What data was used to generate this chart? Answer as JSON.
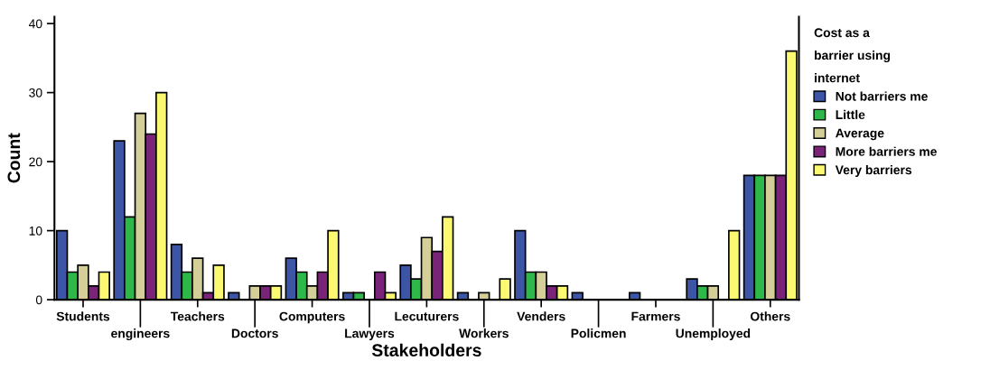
{
  "chart_data": {
    "type": "bar",
    "xlabel": "Stakeholders",
    "ylabel": "Count",
    "legend_title": "Cost as a\nbarrier using\ninternet",
    "categories": [
      "Students",
      "engineers",
      "Teachers",
      "Doctors",
      "Computers",
      "Lawyers",
      "Lecuturers",
      "Workers",
      "Venders",
      "Policmen",
      "Farmers",
      "Unemployed",
      "Others"
    ],
    "series": [
      {
        "name": "Not barriers me",
        "color": "#3c55a5",
        "values": [
          10,
          23,
          8,
          1,
          6,
          1,
          5,
          1,
          10,
          1,
          1,
          3,
          18
        ]
      },
      {
        "name": "Little",
        "color": "#2fb84a",
        "values": [
          4,
          12,
          4,
          null,
          4,
          1,
          3,
          null,
          4,
          null,
          null,
          2,
          18
        ]
      },
      {
        "name": "Average",
        "color": "#d4cf98",
        "values": [
          5,
          27,
          6,
          2,
          2,
          null,
          9,
          1,
          4,
          null,
          null,
          2,
          18
        ]
      },
      {
        "name": "More barriers me",
        "color": "#7a2479",
        "values": [
          2,
          24,
          1,
          2,
          4,
          4,
          7,
          null,
          2,
          null,
          null,
          null,
          18
        ]
      },
      {
        "name": "Very barriers",
        "color": "#fbf871",
        "values": [
          4,
          30,
          5,
          2,
          10,
          1,
          12,
          3,
          2,
          null,
          null,
          10,
          36
        ]
      }
    ],
    "ylim": [
      0,
      41
    ],
    "yticks": [
      0,
      10,
      20,
      30,
      40
    ],
    "grid": false,
    "legend": "right"
  }
}
